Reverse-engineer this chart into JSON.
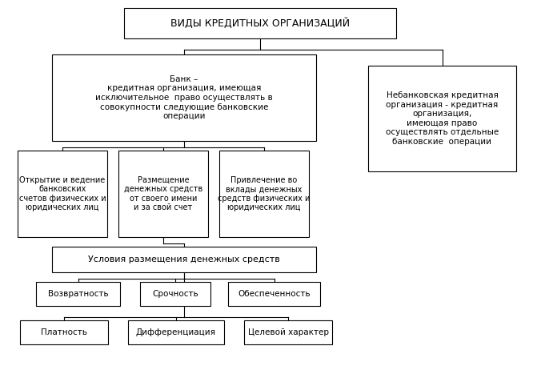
{
  "title": "ВИДЫ КРЕДИТНЫХ ОРГАНИЗАЦИЙ",
  "bank_box": "Банк –\nкредитная организация, имеющая\nисключительное  право осуществлять в\nсовокупности следующие банковские\nоперации",
  "nonbank_box": "Небанковская кредитная\nорганизация - кредитная\nорганизация,\nимеющая право\nосуществлять отдельные\nбанковские  операции",
  "child1": "Открытие и ведение\nбанковских\nсчетов физических и\nюридических лиц",
  "child2": "Размещение\nденежных средств\nот своего имени\nи за свой счет",
  "child3": "Привлечение во\nвклады денежных\nсредств физических и\nюридических лиц",
  "conditions_box": "Условия размещения денежных средств",
  "row3_1": "Возвратность",
  "row3_2": "Срочность",
  "row3_3": "Обеспеченность",
  "row4_1": "Платность",
  "row4_2": "Дифференциация",
  "row4_3": "Целевой характер",
  "bg_color": "#ffffff",
  "box_color": "#ffffff",
  "border_color": "#000000",
  "text_color": "#000000",
  "fig_width": 6.66,
  "fig_height": 4.57,
  "dpi": 100
}
